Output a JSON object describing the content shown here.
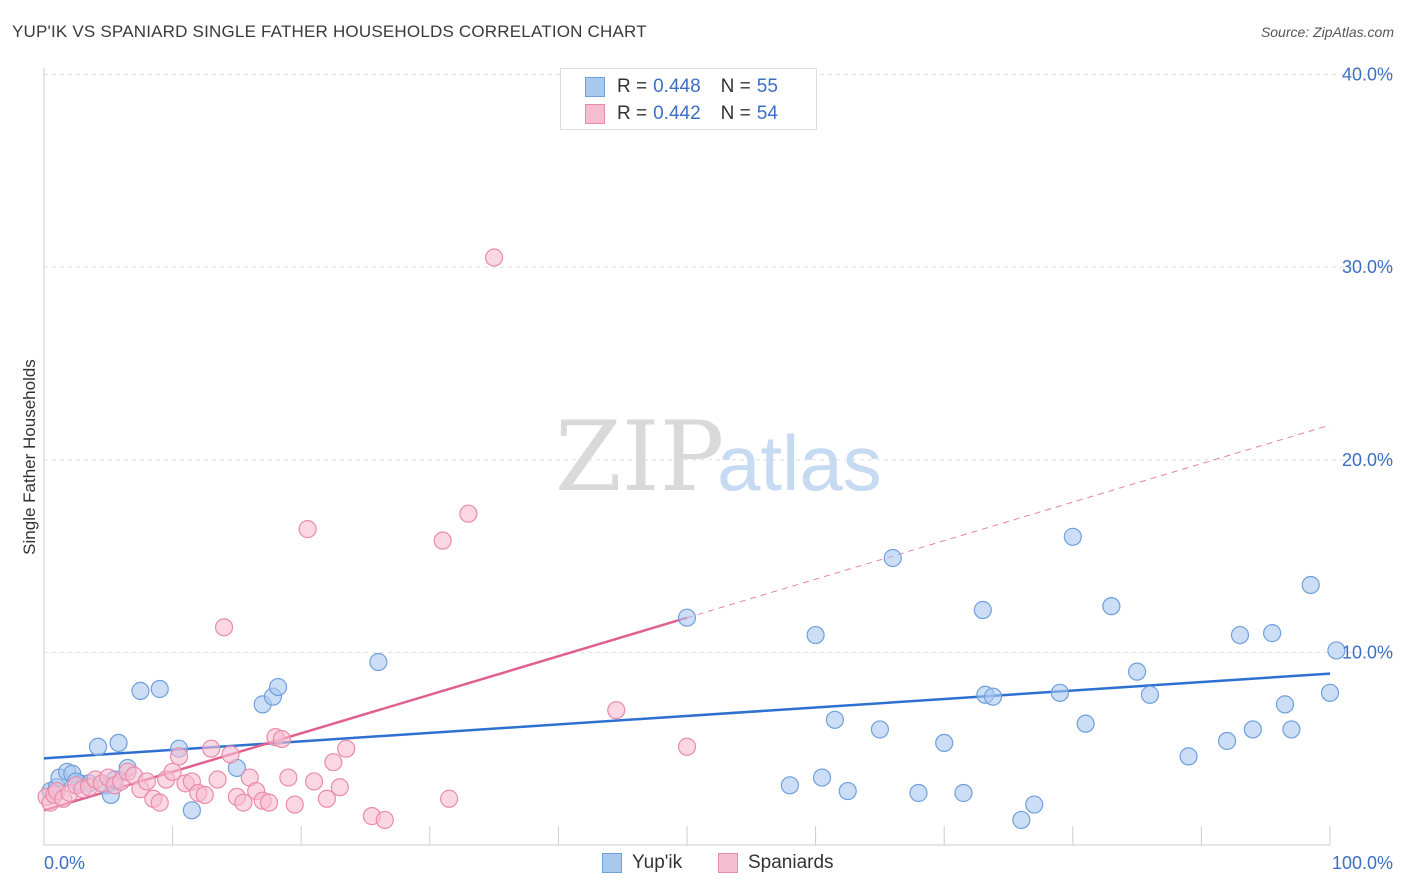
{
  "title": "YUP'IK VS SPANIARD SINGLE FATHER HOUSEHOLDS CORRELATION CHART",
  "source": "Source: ZipAtlas.com",
  "watermark": {
    "zip": "ZIP",
    "atlas": "atlas"
  },
  "legend": {
    "r_label": "R =",
    "n_label": "N =",
    "series": [
      {
        "name": "Yup'ik",
        "r": "0.448",
        "n": "55"
      },
      {
        "name": "Spaniards",
        "r": "0.442",
        "n": "54"
      }
    ]
  },
  "colors": {
    "yupik_fill": "#a9c8f0",
    "yupik_stroke": "#6f9fdc",
    "yupik_line": "#2f6fcf",
    "spaniard_fill": "#f6bcd0",
    "spaniard_stroke": "#e98bab",
    "spaniard_line": "#e0608e",
    "axis_text": "#3c6fc4",
    "grid": "#e0e0e0"
  },
  "chart_data": {
    "type": "scatter",
    "title": "YUP'IK VS SPANIARD SINGLE FATHER HOUSEHOLDS CORRELATION CHART",
    "xlabel": "",
    "ylabel": "Single Father Households",
    "xlim": [
      0,
      100
    ],
    "ylim": [
      0,
      42
    ],
    "x_tick_labels": [
      "0.0%",
      "100.0%"
    ],
    "y_ticks": [
      10,
      20,
      30,
      40
    ],
    "y_tick_labels": [
      "10.0%",
      "20.0%",
      "30.0%",
      "40.0%"
    ],
    "series": [
      {
        "name": "Yup'ik",
        "points": [
          [
            0.5,
            2.8
          ],
          [
            1.0,
            3.0
          ],
          [
            1.2,
            3.5
          ],
          [
            1.8,
            3.8
          ],
          [
            2.2,
            3.7
          ],
          [
            2.8,
            3.2
          ],
          [
            3.5,
            3.2
          ],
          [
            4.2,
            5.1
          ],
          [
            4.8,
            3.1
          ],
          [
            5.2,
            2.6
          ],
          [
            5.5,
            3.4
          ],
          [
            5.8,
            5.3
          ],
          [
            6.5,
            4.0
          ],
          [
            7.5,
            8.0
          ],
          [
            9.0,
            8.1
          ],
          [
            10.5,
            5.0
          ],
          [
            11.5,
            1.8
          ],
          [
            15.0,
            4.0
          ],
          [
            17.0,
            7.3
          ],
          [
            17.8,
            7.7
          ],
          [
            18.2,
            8.2
          ],
          [
            26.0,
            9.5
          ],
          [
            50.0,
            11.8
          ],
          [
            58.0,
            3.1
          ],
          [
            60.0,
            10.9
          ],
          [
            60.5,
            3.5
          ],
          [
            61.5,
            6.5
          ],
          [
            62.5,
            2.8
          ],
          [
            65.0,
            6.0
          ],
          [
            66.0,
            14.9
          ],
          [
            68.0,
            2.7
          ],
          [
            70.0,
            5.3
          ],
          [
            71.5,
            2.7
          ],
          [
            73.0,
            12.2
          ],
          [
            73.2,
            7.8
          ],
          [
            73.8,
            7.7
          ],
          [
            76.0,
            1.3
          ],
          [
            77.0,
            2.1
          ],
          [
            79.0,
            7.9
          ],
          [
            80.0,
            16.0
          ],
          [
            81.0,
            6.3
          ],
          [
            83.0,
            12.4
          ],
          [
            85.0,
            9.0
          ],
          [
            86.0,
            7.8
          ],
          [
            89.0,
            4.6
          ],
          [
            92.0,
            5.4
          ],
          [
            93.0,
            10.9
          ],
          [
            94.0,
            6.0
          ],
          [
            95.5,
            11.0
          ],
          [
            96.5,
            7.3
          ],
          [
            97.0,
            6.0
          ],
          [
            98.5,
            13.5
          ],
          [
            100.0,
            7.9
          ],
          [
            100.5,
            10.1
          ],
          [
            2.5,
            3.3
          ]
        ],
        "trend": {
          "x": [
            0,
            100
          ],
          "y": [
            4.5,
            8.9
          ]
        }
      },
      {
        "name": "Spaniards",
        "points": [
          [
            0.2,
            2.5
          ],
          [
            0.5,
            2.2
          ],
          [
            0.8,
            2.6
          ],
          [
            1.0,
            2.8
          ],
          [
            1.5,
            2.4
          ],
          [
            2.0,
            2.7
          ],
          [
            2.5,
            3.1
          ],
          [
            3.0,
            2.9
          ],
          [
            3.5,
            3.0
          ],
          [
            4.0,
            3.4
          ],
          [
            4.5,
            3.2
          ],
          [
            5.0,
            3.5
          ],
          [
            5.5,
            3.1
          ],
          [
            6.0,
            3.3
          ],
          [
            6.5,
            3.8
          ],
          [
            7.0,
            3.6
          ],
          [
            7.5,
            2.9
          ],
          [
            8.0,
            3.3
          ],
          [
            8.5,
            2.4
          ],
          [
            9.0,
            2.2
          ],
          [
            9.5,
            3.4
          ],
          [
            10.0,
            3.8
          ],
          [
            10.5,
            4.6
          ],
          [
            11.0,
            3.2
          ],
          [
            11.5,
            3.3
          ],
          [
            12.0,
            2.7
          ],
          [
            12.5,
            2.6
          ],
          [
            13.0,
            5.0
          ],
          [
            13.5,
            3.4
          ],
          [
            14.0,
            11.3
          ],
          [
            14.5,
            4.7
          ],
          [
            15.0,
            2.5
          ],
          [
            15.5,
            2.2
          ],
          [
            16.0,
            3.5
          ],
          [
            16.5,
            2.8
          ],
          [
            17.0,
            2.3
          ],
          [
            17.5,
            2.2
          ],
          [
            18.0,
            5.6
          ],
          [
            18.5,
            5.5
          ],
          [
            19.0,
            3.5
          ],
          [
            19.5,
            2.1
          ],
          [
            20.5,
            16.4
          ],
          [
            21.0,
            3.3
          ],
          [
            22.0,
            2.4
          ],
          [
            22.5,
            4.3
          ],
          [
            23.0,
            3.0
          ],
          [
            23.5,
            5.0
          ],
          [
            25.5,
            1.5
          ],
          [
            26.5,
            1.3
          ],
          [
            31.0,
            15.8
          ],
          [
            31.5,
            2.4
          ],
          [
            33.0,
            17.2
          ],
          [
            35.0,
            30.5
          ],
          [
            44.5,
            7.0
          ],
          [
            50.0,
            5.1
          ]
        ],
        "trend": {
          "x": [
            0,
            50
          ],
          "y": [
            1.8,
            11.8
          ]
        },
        "trend_extension": {
          "x": [
            50,
            100
          ],
          "y": [
            11.8,
            21.8
          ]
        }
      }
    ]
  }
}
